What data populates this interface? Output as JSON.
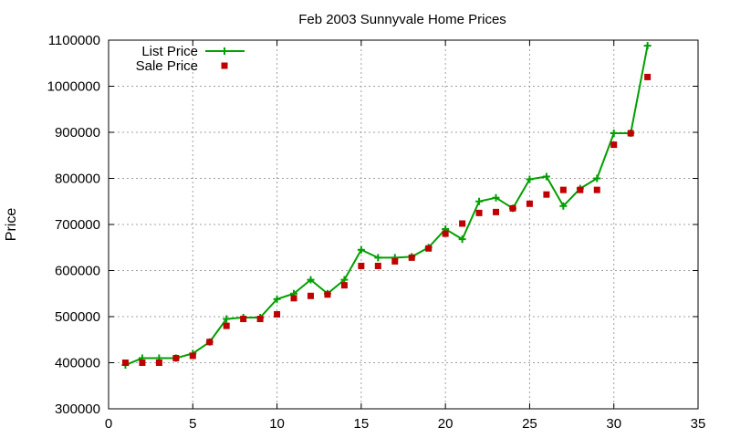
{
  "chart_data": {
    "type": "line",
    "title": "Feb 2003 Sunnyvale Home Prices",
    "xlabel": "",
    "ylabel": "Price",
    "xlim": [
      0,
      35
    ],
    "ylim": [
      300000,
      1100000
    ],
    "xticks": [
      0,
      5,
      10,
      15,
      20,
      25,
      30,
      35
    ],
    "yticks": [
      300000,
      400000,
      500000,
      600000,
      700000,
      800000,
      900000,
      1000000,
      1100000
    ],
    "grid": true,
    "legend_position": "top-left",
    "series": [
      {
        "name": "List Price",
        "style": "line-points",
        "color": "#00a000",
        "x": [
          1,
          2,
          3,
          4,
          5,
          6,
          7,
          8,
          9,
          10,
          11,
          12,
          13,
          14,
          15,
          16,
          17,
          18,
          19,
          20,
          21,
          22,
          23,
          24,
          25,
          26,
          27,
          28,
          29,
          30,
          31,
          32
        ],
        "values": [
          395000,
          410000,
          410000,
          410000,
          420000,
          445000,
          495000,
          498000,
          498000,
          538000,
          550000,
          580000,
          550000,
          580000,
          645000,
          628000,
          628000,
          630000,
          650000,
          690000,
          668000,
          750000,
          758000,
          735000,
          798000,
          804000,
          740000,
          778000,
          800000,
          898000,
          898000,
          1088000
        ]
      },
      {
        "name": "Sale Price",
        "style": "points",
        "color": "#c00000",
        "x": [
          1,
          2,
          3,
          4,
          5,
          6,
          7,
          8,
          9,
          10,
          11,
          12,
          13,
          14,
          15,
          16,
          17,
          18,
          19,
          20,
          21,
          22,
          23,
          24,
          25,
          26,
          27,
          28,
          29,
          30,
          31,
          32
        ],
        "values": [
          400000,
          400000,
          400000,
          410000,
          415000,
          445000,
          480000,
          495000,
          495000,
          505000,
          540000,
          545000,
          548000,
          568000,
          610000,
          610000,
          620000,
          628000,
          648000,
          680000,
          702000,
          725000,
          727000,
          735000,
          745000,
          765000,
          775000,
          775000,
          775000,
          873000,
          898000,
          1020000
        ]
      }
    ]
  }
}
